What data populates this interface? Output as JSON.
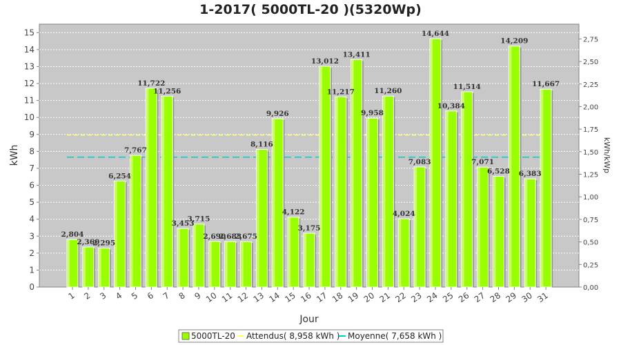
{
  "chart_data": {
    "type": "bar",
    "title": "1-2017( 5000TL-20 )(5320Wp)",
    "xlabel": "Jour",
    "ylabel": "kWh",
    "y2label": "kWh/kWp",
    "ylim": [
      0,
      15.5
    ],
    "y2lim": [
      0,
      2.9135
    ],
    "yticks": [
      "0",
      "1",
      "2",
      "3",
      "4",
      "5",
      "6",
      "7",
      "8",
      "9",
      "10",
      "11",
      "12",
      "13",
      "14",
      "15"
    ],
    "y2ticks": [
      "0,00",
      "0,25",
      "0,50",
      "0,75",
      "1,00",
      "1,25",
      "1,50",
      "1,75",
      "2,00",
      "2,25",
      "2,50",
      "2,75"
    ],
    "categories": [
      "1",
      "2",
      "3",
      "4",
      "5",
      "6",
      "7",
      "8",
      "9",
      "10",
      "11",
      "12",
      "13",
      "14",
      "15",
      "16",
      "17",
      "18",
      "19",
      "20",
      "21",
      "22",
      "23",
      "24",
      "25",
      "26",
      "27",
      "28",
      "29",
      "30",
      "31"
    ],
    "series": [
      {
        "name": "5000TL-20",
        "color": "#99ff00",
        "values": [
          2.804,
          2.36,
          2.295,
          6.254,
          7.767,
          11.722,
          11.256,
          3.453,
          3.715,
          2.69,
          2.683,
          2.675,
          8.116,
          9.926,
          4.122,
          3.175,
          13.012,
          11.217,
          13.411,
          9.958,
          11.26,
          4.024,
          7.083,
          14.644,
          10.384,
          11.514,
          7.071,
          6.528,
          14.209,
          6.383,
          11.667
        ],
        "labels": [
          "2,804",
          "2,360",
          "2,295",
          "6,254",
          "7,767",
          "11,722",
          "11,256",
          "3,453",
          "3,715",
          "2,690",
          "2,683",
          "2,675",
          "8,116",
          "9,926",
          "4,122",
          "3,175",
          "13,012",
          "11,217",
          "13,411",
          "9,958",
          "11,260",
          "4,024",
          "7,083",
          "14,644",
          "10,384",
          "11,514",
          "7,071",
          "6,528",
          "14,209",
          "6,383",
          "11,667"
        ]
      }
    ],
    "reference_lines": [
      {
        "name": "Attendus( 8,958 kWh )",
        "value": 8.958,
        "color": "#ffff66",
        "style": "dashed"
      },
      {
        "name": "Moyenne( 7,658 kWh )",
        "value": 7.658,
        "color": "#00cccc",
        "style": "dashed"
      }
    ],
    "legend": [
      {
        "label": "5000TL-20",
        "kind": "box",
        "color": "#99ff00"
      },
      {
        "label": "Attendus( 8,958 kWh )",
        "kind": "line",
        "color": "#ffff66"
      },
      {
        "label": "Moyenne( 7,658 kWh )",
        "kind": "line",
        "color": "#00cccc"
      }
    ],
    "legend_position": "bottom",
    "grid": true,
    "plot_background": "#c8c8c8"
  }
}
